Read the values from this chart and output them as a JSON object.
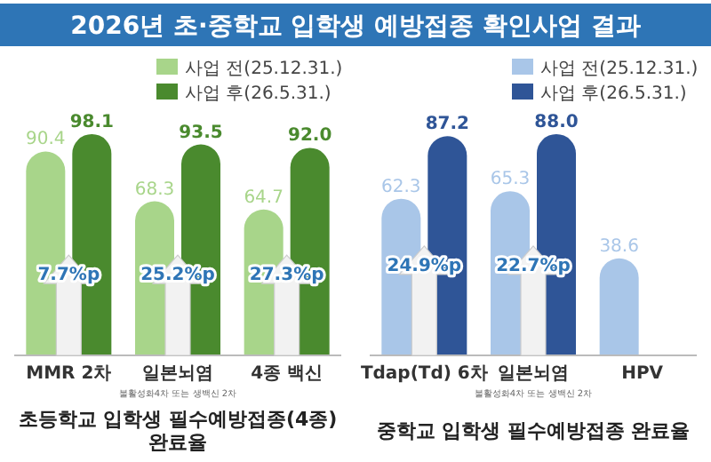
{
  "chart_data": [
    {
      "type": "bar",
      "title": "2026년 초·중학교 입학생 예방접종 확인사업 결과",
      "xlabel": "초등학교 입학생 필수예방접종(4종) 완료율",
      "categories": [
        "MMR 2차",
        "일본뇌염",
        "4종 백신"
      ],
      "series": [
        {
          "name": "사업 전(25.12.31.)",
          "color": "#a8d58a",
          "values": [
            90.4,
            68.3,
            64.7
          ],
          "value_labels": [
            "90.4",
            "68.3",
            "64.7"
          ]
        },
        {
          "name": "사업 후(26.5.31.)",
          "color": "#4a8a2e",
          "values": [
            98.1,
            93.5,
            92.0
          ],
          "value_labels": [
            "98.1",
            "93.5",
            "92.0"
          ]
        }
      ],
      "legend": "top right",
      "tick_labels": "x",
      "annotations": [
        {
          "text": "7.7%p",
          "x": "MMR 2차",
          "y": 35
        },
        {
          "text": "25.2%p",
          "x": "일본뇌염",
          "y": 35
        },
        {
          "text": "27.3%p",
          "x": "4종 백신",
          "y": 35
        },
        "불활성화4차 또는 생백신 2차"
      ]
    },
    {
      "type": "bar",
      "xlabel": "중학교 입학생 필수예방접종 완료율",
      "categories": [
        "Tdap(Td) 6차",
        "일본뇌염",
        "HPV"
      ],
      "series": [
        {
          "name": "사업 전(25.12.31.)",
          "color": "#a9c6e8",
          "values": [
            62.3,
            65.3,
            38.6
          ],
          "value_labels": [
            "62.3",
            "65.3",
            "38.6"
          ]
        },
        {
          "name": "사업 후(26.5.31.)",
          "color": "#2f5597",
          "values": [
            87.2,
            88.0,
            null
          ],
          "value_labels": [
            "87.2",
            "88.0",
            null
          ]
        }
      ],
      "legend": "top right",
      "tick_labels": "x",
      "annotations": [
        {
          "text": "24.9%p",
          "x": "Tdap(Td) 6차",
          "y": 35
        },
        {
          "text": "22.7%p",
          "x": "일본뇌염",
          "y": 35
        },
        "불활성화4차 또는 생백신 2차"
      ]
    }
  ]
}
